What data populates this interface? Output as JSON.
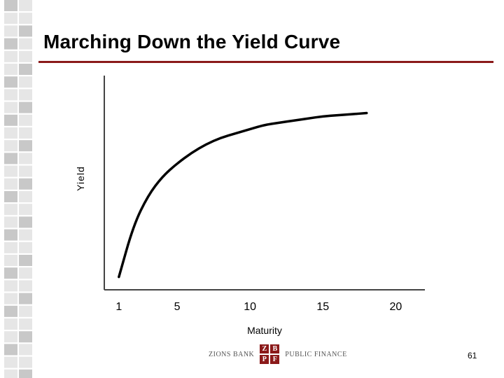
{
  "title": "Marching Down the Yield Curve",
  "chart_data": {
    "type": "line",
    "xlabel": "Maturity",
    "ylabel": "Yield",
    "x_ticks": [
      1,
      5,
      10,
      15,
      20
    ],
    "xlim": [
      0,
      22
    ],
    "ylim": [
      0,
      1
    ],
    "grid": false,
    "series": [
      {
        "x": [
          1,
          2,
          3,
          4,
          5,
          6,
          7,
          8,
          9,
          10,
          11,
          12,
          13,
          14,
          15,
          16,
          17,
          18
        ],
        "y": [
          0.06,
          0.3,
          0.44,
          0.53,
          0.59,
          0.64,
          0.68,
          0.71,
          0.73,
          0.75,
          0.77,
          0.78,
          0.79,
          0.8,
          0.81,
          0.815,
          0.82,
          0.825
        ]
      }
    ],
    "line_color": "#000000"
  },
  "logo": {
    "left_text": "ZIONS BANK",
    "cells": [
      "Z",
      "B",
      "P",
      "F"
    ],
    "right_text": "PUBLIC FINANCE"
  },
  "page_number": "61",
  "colors": {
    "accent": "#8b1a1a",
    "strip_dark": "#c8c8c8",
    "strip_light": "#e6e6e6"
  }
}
